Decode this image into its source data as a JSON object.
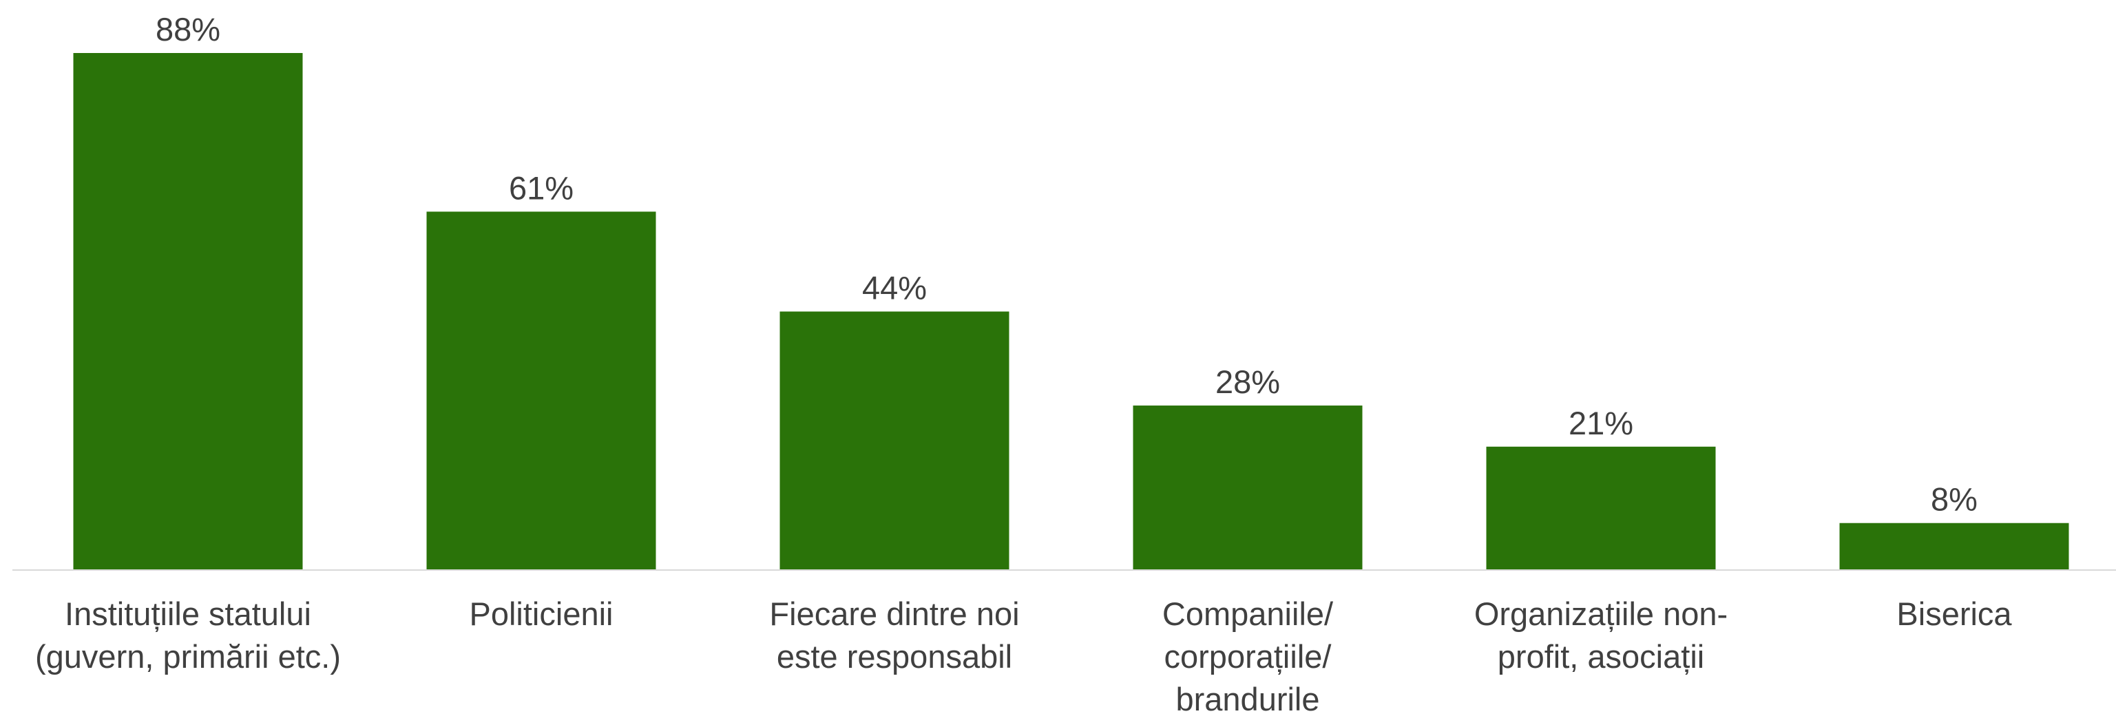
{
  "chart_data": {
    "type": "bar",
    "categories": [
      [
        "Instituțiile statului",
        "(guvern, primării etc.)"
      ],
      [
        "Politicienii"
      ],
      [
        "Fiecare dintre noi",
        "este responsabil"
      ],
      [
        "Companiile/",
        "corporațiile/",
        "brandurile"
      ],
      [
        "Organizațiile non-",
        "profit, asociații"
      ],
      [
        "Biserica"
      ]
    ],
    "values": [
      88,
      61,
      44,
      28,
      21,
      8
    ],
    "value_labels": [
      "88%",
      "61%",
      "44%",
      "28%",
      "21%",
      "8%"
    ],
    "unit": "%",
    "title": "",
    "xlabel": "",
    "ylabel": "",
    "ylim": [
      0,
      88
    ],
    "grid": false,
    "legend": "none",
    "bar_color": "#2a7309",
    "baseline_color": "#d9d9d9",
    "text_color": "#404040"
  }
}
